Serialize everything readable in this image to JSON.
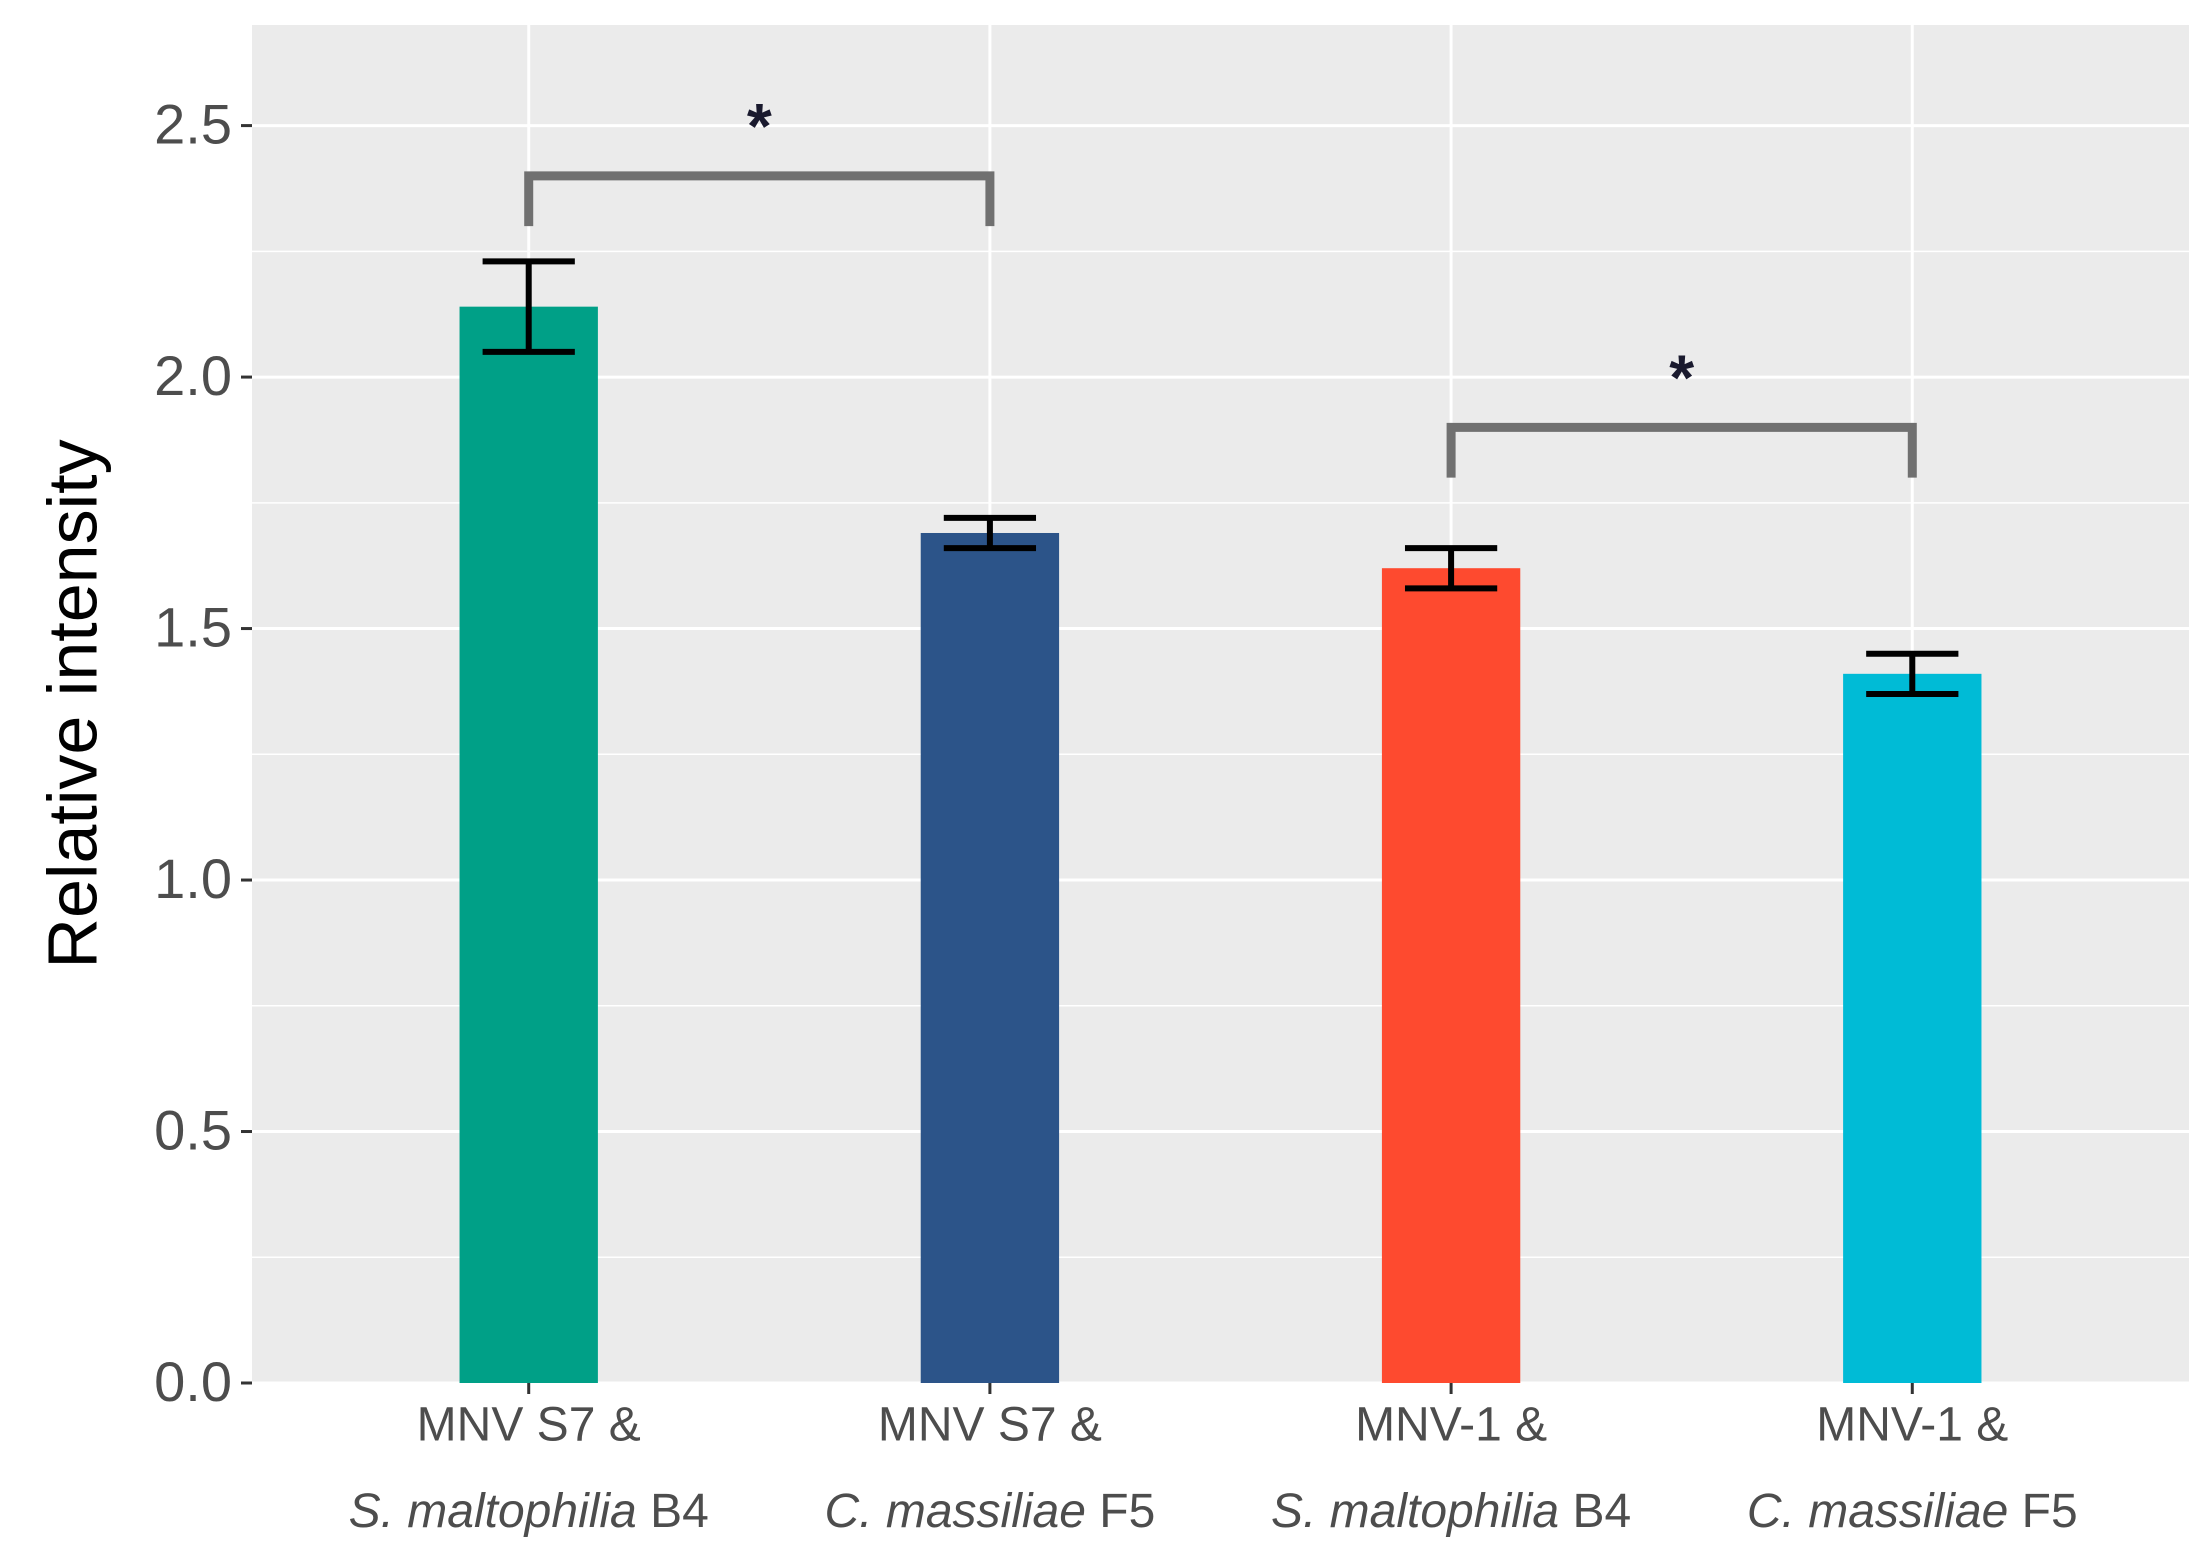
{
  "chart_data": {
    "type": "bar",
    "y_label": "Relative intensity",
    "categories": [
      {
        "line1": "MNV S7 &",
        "species": "S. maltophilia",
        "strain": "B4"
      },
      {
        "line1": "MNV S7 &",
        "species": "C. massiliae",
        "strain": "F5"
      },
      {
        "line1": "MNV-1 &",
        "species": "S. maltophilia",
        "strain": "B4"
      },
      {
        "line1": "MNV-1 &",
        "species": "C. massiliae",
        "strain": "F5"
      }
    ],
    "values": [
      2.14,
      1.69,
      1.62,
      1.41
    ],
    "errors": [
      0.09,
      0.03,
      0.04,
      0.04
    ],
    "colors": [
      "#00a087",
      "#2c5489",
      "#fe4a2f",
      "#00bbd6"
    ],
    "ylim": [
      0,
      2.7
    ],
    "yticks": [
      {
        "value": 0,
        "label": "0.0"
      },
      0.5,
      {
        "value": 1,
        "label": "1.0"
      },
      1.5,
      {
        "value": 2,
        "label": "2.0"
      },
      2.5
    ],
    "grid": true,
    "annotations": [
      {
        "from": 0,
        "to": 1,
        "y": 2.4,
        "tip": 2.3,
        "label": "*"
      },
      {
        "from": 2,
        "to": 3,
        "y": 1.9,
        "tip": 1.8,
        "label": "*"
      }
    ]
  }
}
